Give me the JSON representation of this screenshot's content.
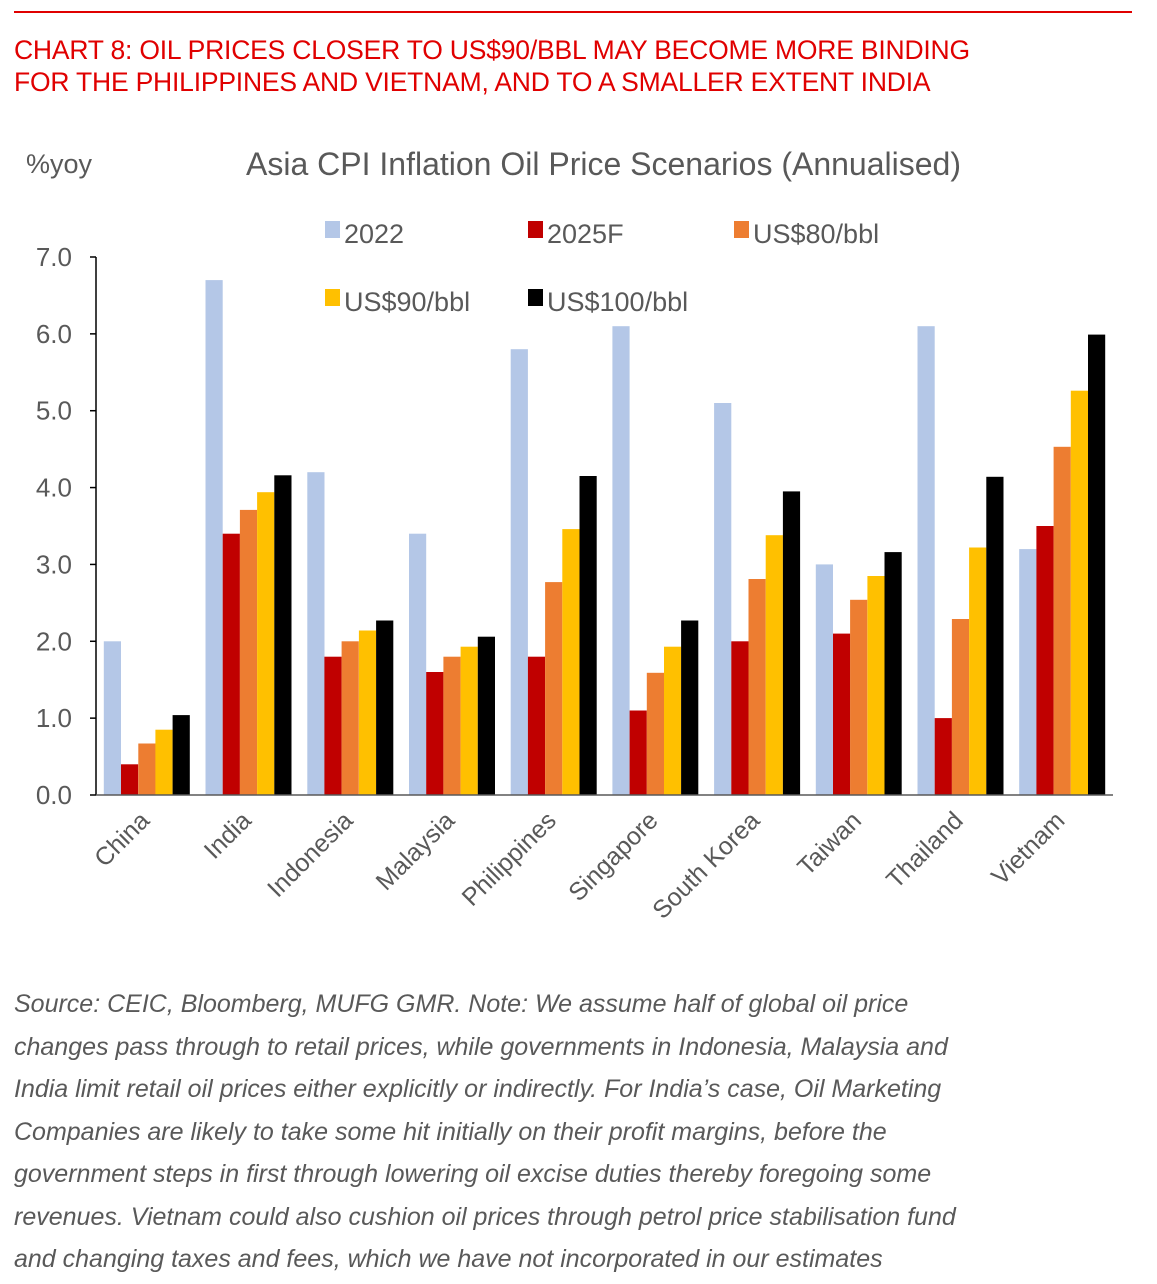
{
  "header": {
    "title_lines": [
      "CHART 8: OIL PRICES CLOSER TO US$90/BBL MAY BECOME MORE BINDING",
      "FOR THE PHILIPPINES AND VIETNAM, AND TO A SMALLER EXTENT INDIA"
    ],
    "accent_color": "#e00000"
  },
  "chart_data": {
    "type": "bar",
    "title": "Asia CPI Inflation Oil Price Scenarios (Annualised)",
    "ylabel": "%yoy",
    "xlabel": "",
    "ylim": [
      0,
      7
    ],
    "yticks": [
      "0.0",
      "1.0",
      "2.0",
      "3.0",
      "4.0",
      "5.0",
      "6.0",
      "7.0"
    ],
    "grid": false,
    "legend_position": "top",
    "categories": [
      "China",
      "India",
      "Indonesia",
      "Malaysia",
      "Philippines",
      "Singapore",
      "South Korea",
      "Taiwan",
      "Thailand",
      "Vietnam"
    ],
    "series": [
      {
        "name": "2022",
        "color": "#b4c7e7",
        "values": [
          2.0,
          6.7,
          4.2,
          3.4,
          5.8,
          6.1,
          5.1,
          3.0,
          6.1,
          3.2
        ]
      },
      {
        "name": "2025F",
        "color": "#c00000",
        "values": [
          0.4,
          3.4,
          1.8,
          1.6,
          1.8,
          1.1,
          2.0,
          2.1,
          1.0,
          3.5
        ]
      },
      {
        "name": "US$80/bbl",
        "color": "#ed7d31",
        "values": [
          0.67,
          3.71,
          2.0,
          1.8,
          2.77,
          1.59,
          2.81,
          2.54,
          2.29,
          4.53
        ]
      },
      {
        "name": "US$90/bbl",
        "color": "#ffc000",
        "values": [
          0.85,
          3.94,
          2.14,
          1.93,
          3.46,
          1.93,
          3.38,
          2.85,
          3.22,
          5.26
        ]
      },
      {
        "name": "US$100/bbl",
        "color": "#000000",
        "values": [
          1.04,
          4.16,
          2.27,
          2.06,
          4.15,
          2.27,
          3.95,
          3.16,
          4.14,
          5.99
        ]
      }
    ]
  },
  "note_lines": [
    "Source: CEIC, Bloomberg, MUFG GMR.  Note: We assume half of global oil price",
    "changes pass through to retail prices, while governments in Indonesia, Malaysia and",
    "India limit retail oil prices either explicitly or indirectly. For India’s case, Oil Marketing",
    "Companies are likely to take some hit initially on their profit margins, before the",
    "government steps in first through lowering oil excise duties thereby foregoing some",
    "revenues. Vietnam could also cushion oil prices through petrol price stabilisation fund",
    "and changing taxes and fees, which we have not incorporated in our estimates"
  ]
}
